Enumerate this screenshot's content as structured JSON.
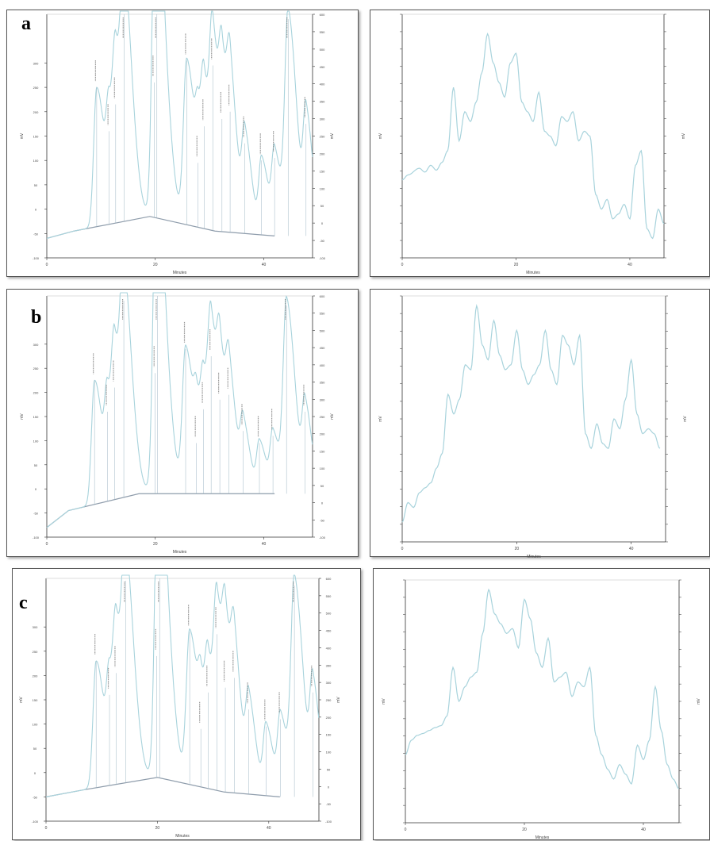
{
  "figure": {
    "panel_labels": [
      "a",
      "b",
      "c"
    ],
    "colors": {
      "trace": "#a8d3dc",
      "baseline": "#8e9cab",
      "axis": "#333333",
      "tick_text": "#444444",
      "peak_label": "#555555"
    }
  },
  "chart_data": [
    {
      "panel": "a",
      "type": "line",
      "subtype": "chromatogram",
      "xlabel": "Minutes",
      "ylabel_left": "mV",
      "ylabel_right": "mV",
      "xlim": [
        0,
        42
      ],
      "xticks": [
        0,
        20,
        40
      ],
      "ylim_left": [
        -100,
        400
      ],
      "yticks_left": [
        -100,
        -50,
        0,
        50,
        100,
        150,
        200,
        250,
        300
      ],
      "ylim_right": [
        -100,
        600
      ],
      "yticks_right": [
        -100,
        -50,
        0,
        50,
        100,
        150,
        200,
        250,
        300,
        350,
        400,
        450,
        500,
        550,
        600
      ],
      "baseline": [
        [
          0,
          -60
        ],
        [
          5,
          -45
        ],
        [
          19,
          -15
        ],
        [
          31,
          -45
        ],
        [
          42,
          -55
        ]
      ],
      "peaks": [
        {
          "x": 9.2,
          "y": 250,
          "w": 0.55
        },
        {
          "x": 11.5,
          "y": 160,
          "w": 0.5
        },
        {
          "x": 12.7,
          "y": 215,
          "w": 0.5
        },
        {
          "x": 14.3,
          "y": 400,
          "w": 0.6
        },
        {
          "x": 20.3,
          "y": 480,
          "w": 0.7
        },
        {
          "x": 19.8,
          "y": 260,
          "w": 0.45
        },
        {
          "x": 25.8,
          "y": 305,
          "w": 0.6
        },
        {
          "x": 27.9,
          "y": 95,
          "w": 0.45
        },
        {
          "x": 29.0,
          "y": 170,
          "w": 0.5
        },
        {
          "x": 30.6,
          "y": 295,
          "w": 0.55
        },
        {
          "x": 32.3,
          "y": 185,
          "w": 0.5
        },
        {
          "x": 33.8,
          "y": 200,
          "w": 0.55
        },
        {
          "x": 36.5,
          "y": 135,
          "w": 0.5
        },
        {
          "x": 39.6,
          "y": 100,
          "w": 0.5
        },
        {
          "x": 42.0,
          "y": 105,
          "w": 0.5
        },
        {
          "x": 44.5,
          "y": 390,
          "w": 0.6
        },
        {
          "x": 47.8,
          "y": 175,
          "w": 0.5
        }
      ]
    },
    {
      "panel": "a-right",
      "type": "line",
      "subtype": "chromatogram-zoom",
      "xlabel": "Minutes",
      "ylabel_left": "mV",
      "ylabel_right": "mV",
      "xlim": [
        0,
        42
      ],
      "xticks": [
        0,
        20,
        40
      ],
      "trace": [
        [
          0,
          80
        ],
        [
          1,
          85
        ],
        [
          3,
          92
        ],
        [
          4,
          88
        ],
        [
          5,
          95
        ],
        [
          6,
          90
        ],
        [
          7,
          98
        ],
        [
          8,
          110
        ],
        [
          9,
          175
        ],
        [
          10,
          120
        ],
        [
          11,
          150
        ],
        [
          12,
          140
        ],
        [
          13,
          160
        ],
        [
          14,
          190
        ],
        [
          15,
          230
        ],
        [
          16,
          200
        ],
        [
          17,
          180
        ],
        [
          18,
          165
        ],
        [
          19,
          200
        ],
        [
          20,
          210
        ],
        [
          21,
          160
        ],
        [
          22,
          150
        ],
        [
          23,
          140
        ],
        [
          24,
          170
        ],
        [
          25,
          130
        ],
        [
          26,
          125
        ],
        [
          27,
          115
        ],
        [
          28,
          145
        ],
        [
          29,
          140
        ],
        [
          30,
          150
        ],
        [
          31,
          120
        ],
        [
          32,
          130
        ],
        [
          33,
          125
        ],
        [
          34,
          65
        ],
        [
          35,
          50
        ],
        [
          36,
          60
        ],
        [
          37,
          40
        ],
        [
          38,
          45
        ],
        [
          39,
          55
        ],
        [
          40,
          40
        ],
        [
          41,
          95
        ],
        [
          42,
          110
        ],
        [
          43,
          30
        ],
        [
          44,
          20
        ],
        [
          45,
          50
        ],
        [
          46,
          35
        ]
      ]
    },
    {
      "panel": "b",
      "type": "line",
      "subtype": "chromatogram",
      "xlabel": "Minutes",
      "ylabel_left": "mV",
      "ylabel_right": "mV",
      "xlim": [
        0,
        42
      ],
      "xticks": [
        0,
        20,
        40
      ],
      "ylim_left": [
        -100,
        400
      ],
      "yticks_left": [
        -100,
        -50,
        0,
        50,
        100,
        150,
        200,
        250,
        300
      ],
      "ylim_right": [
        -100,
        600
      ],
      "yticks_right": [
        -100,
        -50,
        0,
        50,
        100,
        150,
        200,
        250,
        300,
        350,
        400,
        450,
        500,
        550,
        600
      ],
      "baseline": [
        [
          0,
          -80
        ],
        [
          4,
          -45
        ],
        [
          17,
          -10
        ],
        [
          42,
          -10
        ]
      ],
      "peaks": [
        {
          "x": 8.8,
          "y": 225,
          "w": 0.55
        },
        {
          "x": 11.2,
          "y": 160,
          "w": 0.5
        },
        {
          "x": 12.5,
          "y": 210,
          "w": 0.5
        },
        {
          "x": 14.2,
          "y": 390,
          "w": 0.6
        },
        {
          "x": 20.4,
          "y": 470,
          "w": 0.7
        },
        {
          "x": 20.0,
          "y": 240,
          "w": 0.45
        },
        {
          "x": 25.6,
          "y": 290,
          "w": 0.6
        },
        {
          "x": 27.6,
          "y": 95,
          "w": 0.45
        },
        {
          "x": 28.9,
          "y": 165,
          "w": 0.5
        },
        {
          "x": 30.3,
          "y": 275,
          "w": 0.55
        },
        {
          "x": 31.9,
          "y": 185,
          "w": 0.5
        },
        {
          "x": 33.6,
          "y": 195,
          "w": 0.55
        },
        {
          "x": 36.2,
          "y": 120,
          "w": 0.5
        },
        {
          "x": 39.2,
          "y": 95,
          "w": 0.5
        },
        {
          "x": 41.7,
          "y": 110,
          "w": 0.5
        },
        {
          "x": 44.2,
          "y": 380,
          "w": 0.6
        },
        {
          "x": 47.6,
          "y": 160,
          "w": 0.5
        }
      ]
    },
    {
      "panel": "b-right",
      "type": "line",
      "subtype": "chromatogram-zoom",
      "xlabel": "Minutes",
      "ylabel_left": "mV",
      "ylabel_right": "mV",
      "xlim": [
        0,
        42
      ],
      "xticks": [
        0,
        20,
        40
      ],
      "trace": [
        [
          0,
          20
        ],
        [
          1,
          40
        ],
        [
          2,
          35
        ],
        [
          3,
          50
        ],
        [
          4,
          55
        ],
        [
          5,
          60
        ],
        [
          6,
          75
        ],
        [
          7,
          90
        ],
        [
          8,
          150
        ],
        [
          9,
          130
        ],
        [
          10,
          145
        ],
        [
          11,
          180
        ],
        [
          12,
          175
        ],
        [
          13,
          240
        ],
        [
          14,
          200
        ],
        [
          15,
          185
        ],
        [
          16,
          225
        ],
        [
          17,
          190
        ],
        [
          18,
          175
        ],
        [
          19,
          180
        ],
        [
          20,
          215
        ],
        [
          21,
          175
        ],
        [
          22,
          160
        ],
        [
          23,
          170
        ],
        [
          24,
          180
        ],
        [
          25,
          215
        ],
        [
          26,
          175
        ],
        [
          27,
          160
        ],
        [
          28,
          210
        ],
        [
          29,
          200
        ],
        [
          30,
          180
        ],
        [
          31,
          210
        ],
        [
          32,
          110
        ],
        [
          33,
          95
        ],
        [
          34,
          120
        ],
        [
          35,
          100
        ],
        [
          36,
          95
        ],
        [
          37,
          125
        ],
        [
          38,
          115
        ],
        [
          39,
          145
        ],
        [
          40,
          185
        ],
        [
          41,
          130
        ],
        [
          42,
          110
        ],
        [
          43,
          115
        ],
        [
          44,
          110
        ],
        [
          45,
          95
        ]
      ]
    },
    {
      "panel": "c",
      "type": "line",
      "subtype": "chromatogram",
      "xlabel": "Minutes",
      "ylabel_left": "mV",
      "ylabel_right": "mV",
      "xlim": [
        0,
        42
      ],
      "xticks": [
        0,
        20,
        40
      ],
      "ylim_left": [
        -100,
        400
      ],
      "yticks_left": [
        -100,
        -50,
        0,
        50,
        100,
        150,
        200,
        250,
        300
      ],
      "ylim_right": [
        -100,
        600
      ],
      "yticks_right": [
        -100,
        -50,
        0,
        50,
        100,
        150,
        200,
        250,
        300,
        350,
        400,
        450,
        500,
        550,
        600
      ],
      "baseline": [
        [
          0,
          -50
        ],
        [
          7,
          -35
        ],
        [
          20,
          -10
        ],
        [
          32,
          -40
        ],
        [
          42,
          -50
        ]
      ],
      "peaks": [
        {
          "x": 9.0,
          "y": 230,
          "w": 0.55
        },
        {
          "x": 11.4,
          "y": 160,
          "w": 0.5
        },
        {
          "x": 12.6,
          "y": 205,
          "w": 0.5
        },
        {
          "x": 14.3,
          "y": 395,
          "w": 0.6
        },
        {
          "x": 20.4,
          "y": 475,
          "w": 0.7
        },
        {
          "x": 19.9,
          "y": 240,
          "w": 0.45
        },
        {
          "x": 25.8,
          "y": 290,
          "w": 0.6
        },
        {
          "x": 27.8,
          "y": 90,
          "w": 0.45
        },
        {
          "x": 29.1,
          "y": 165,
          "w": 0.5
        },
        {
          "x": 30.7,
          "y": 285,
          "w": 0.55
        },
        {
          "x": 32.2,
          "y": 175,
          "w": 0.5
        },
        {
          "x": 33.8,
          "y": 195,
          "w": 0.55
        },
        {
          "x": 36.4,
          "y": 130,
          "w": 0.5
        },
        {
          "x": 39.5,
          "y": 95,
          "w": 0.5
        },
        {
          "x": 42.1,
          "y": 110,
          "w": 0.5
        },
        {
          "x": 44.6,
          "y": 385,
          "w": 0.6
        },
        {
          "x": 47.9,
          "y": 165,
          "w": 0.5
        }
      ]
    },
    {
      "panel": "c-right",
      "type": "line",
      "subtype": "chromatogram-zoom",
      "xlabel": "Minutes",
      "ylabel_left": "mV",
      "ylabel_right": "mV",
      "xlim": [
        0,
        42
      ],
      "xticks": [
        0,
        20,
        40
      ],
      "trace": [
        [
          0,
          70
        ],
        [
          1,
          85
        ],
        [
          2,
          90
        ],
        [
          3,
          92
        ],
        [
          4,
          95
        ],
        [
          5,
          98
        ],
        [
          6,
          100
        ],
        [
          7,
          110
        ],
        [
          8,
          160
        ],
        [
          9,
          125
        ],
        [
          10,
          140
        ],
        [
          11,
          150
        ],
        [
          12,
          155
        ],
        [
          13,
          195
        ],
        [
          14,
          240
        ],
        [
          15,
          215
        ],
        [
          16,
          205
        ],
        [
          17,
          195
        ],
        [
          18,
          200
        ],
        [
          19,
          180
        ],
        [
          20,
          230
        ],
        [
          21,
          210
        ],
        [
          22,
          175
        ],
        [
          23,
          160
        ],
        [
          24,
          190
        ],
        [
          25,
          145
        ],
        [
          26,
          150
        ],
        [
          27,
          155
        ],
        [
          28,
          130
        ],
        [
          29,
          145
        ],
        [
          30,
          140
        ],
        [
          31,
          160
        ],
        [
          32,
          90
        ],
        [
          33,
          70
        ],
        [
          34,
          55
        ],
        [
          35,
          45
        ],
        [
          36,
          60
        ],
        [
          37,
          50
        ],
        [
          38,
          40
        ],
        [
          39,
          80
        ],
        [
          40,
          65
        ],
        [
          41,
          85
        ],
        [
          42,
          140
        ],
        [
          43,
          95
        ],
        [
          44,
          60
        ],
        [
          45,
          45
        ],
        [
          46,
          35
        ]
      ]
    }
  ]
}
